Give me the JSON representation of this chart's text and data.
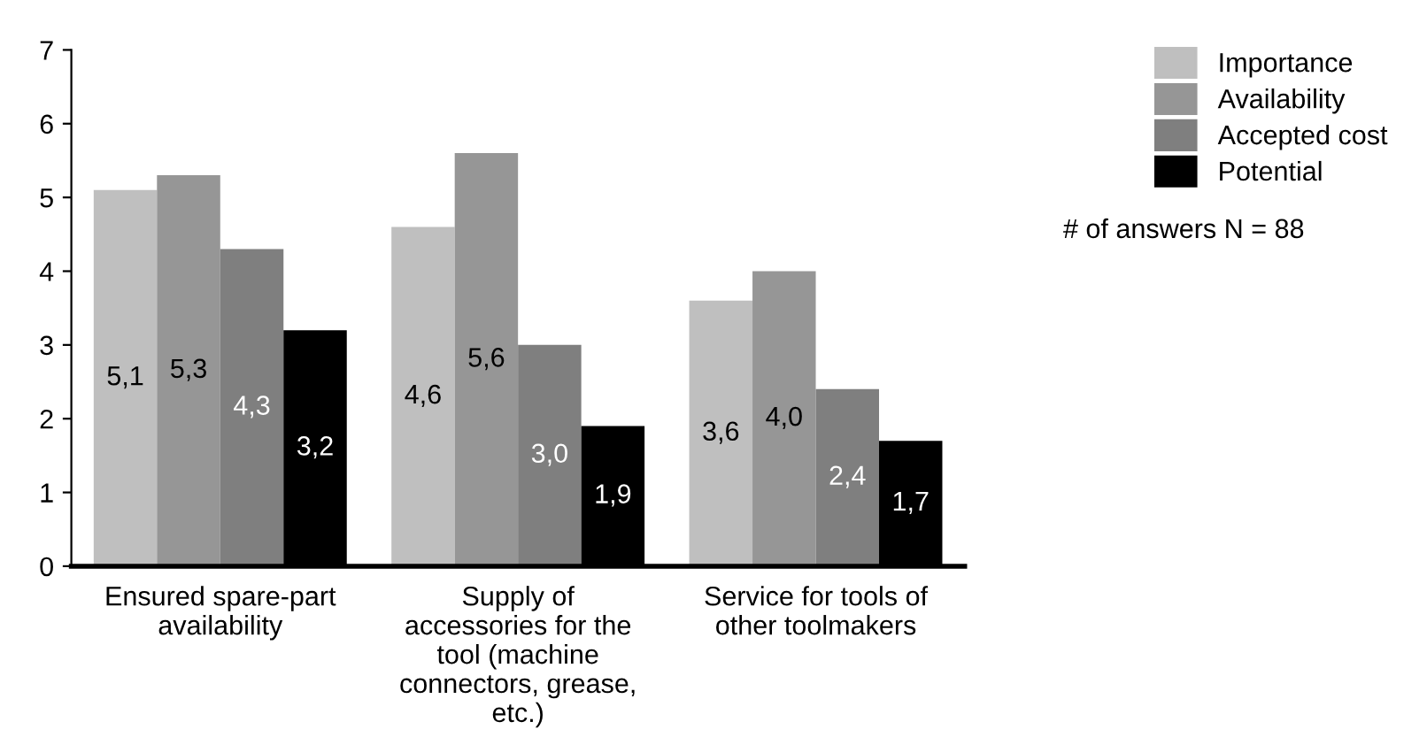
{
  "chart_data": {
    "type": "bar",
    "categories": [
      "Ensured spare-part availability",
      "Supply of accessories for the tool (machine connectors, grease, etc.)",
      "Service for tools of other toolmakers"
    ],
    "series": [
      {
        "name": "Importance",
        "color": "#bfbfbf",
        "values": [
          5.1,
          4.6,
          3.6
        ],
        "value_labels": [
          "5,1",
          "4,6",
          "3,6"
        ]
      },
      {
        "name": "Availability",
        "color": "#969696",
        "values": [
          5.3,
          5.6,
          4.0
        ],
        "value_labels": [
          "5,3",
          "5,6",
          "4,0"
        ]
      },
      {
        "name": "Accepted cost",
        "color": "#7f7f7f",
        "values": [
          4.3,
          3.0,
          2.4
        ],
        "value_labels": [
          "4,3",
          "3,0",
          "2,4"
        ]
      },
      {
        "name": "Potential",
        "color": "#000000",
        "values": [
          3.2,
          1.9,
          1.7
        ],
        "value_labels": [
          "3,2",
          "1,9",
          "1,7"
        ]
      }
    ],
    "ylim": [
      0,
      7
    ],
    "yticks": [
      0,
      1,
      2,
      3,
      4,
      5,
      6,
      7
    ],
    "grid": false,
    "legend": "top right",
    "annotations": [
      "# of answers N = 88"
    ]
  }
}
